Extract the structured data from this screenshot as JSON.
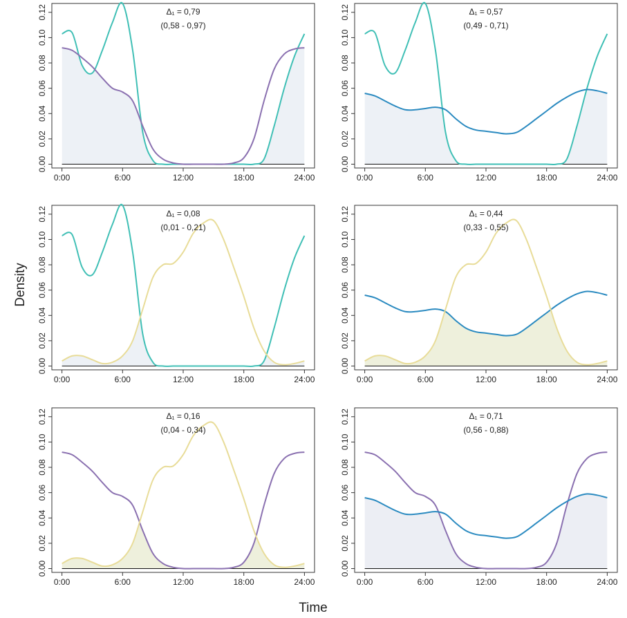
{
  "ylabel": "Density",
  "xlabel": "Time",
  "chart_data": [
    {
      "type": "line",
      "annotation": "Δ₁ = 0,79",
      "interval": "(0,58 - 0,97)",
      "shade_color": "#edf1f6",
      "x": [
        0,
        1,
        2,
        3,
        4,
        5,
        6,
        7,
        8,
        9,
        10,
        11,
        12,
        13,
        14,
        15,
        16,
        17,
        18,
        19,
        20,
        21,
        22,
        23,
        24
      ],
      "xlim": [
        -1,
        25
      ],
      "ylim": [
        -0.003,
        0.127
      ],
      "xticks": [
        {
          "value": 0,
          "label": "0:00"
        },
        {
          "value": 6,
          "label": "6:00"
        },
        {
          "value": 12,
          "label": "12:00"
        },
        {
          "value": 18,
          "label": "18:00"
        },
        {
          "value": 24,
          "label": "24:00"
        }
      ],
      "yticks": [
        {
          "value": 0,
          "label": "0.00"
        },
        0.02,
        0.04,
        0.06,
        0.08,
        {
          "value": 0.1,
          "label": "0.10"
        },
        0.12
      ],
      "series": [
        {
          "color": "#3fbfb5",
          "values": [
            0.103,
            0.104,
            0.078,
            0.072,
            0.09,
            0.112,
            0.127,
            0.09,
            0.025,
            0.003,
            0,
            0,
            0,
            0,
            0,
            0,
            0,
            0,
            0,
            0,
            0.004,
            0.03,
            0.06,
            0.085,
            0.103
          ]
        },
        {
          "color": "#8a70b0",
          "values": [
            0.092,
            0.09,
            0.084,
            0.077,
            0.068,
            0.06,
            0.057,
            0.05,
            0.03,
            0.012,
            0.004,
            0.001,
            0,
            0,
            0,
            0,
            0,
            0.001,
            0.005,
            0.02,
            0.05,
            0.075,
            0.087,
            0.091,
            0.092
          ]
        }
      ]
    },
    {
      "type": "line",
      "annotation": "Δ₁ = 0,57",
      "interval": "(0,49 - 0,71)",
      "shade_color": "#edf1f6",
      "x": [
        0,
        1,
        2,
        3,
        4,
        5,
        6,
        7,
        8,
        9,
        10,
        11,
        12,
        13,
        14,
        15,
        16,
        17,
        18,
        19,
        20,
        21,
        22,
        23,
        24
      ],
      "xlim": [
        -1,
        25
      ],
      "ylim": [
        -0.003,
        0.127
      ],
      "xticks": [
        {
          "value": 0,
          "label": "0:00"
        },
        {
          "value": 6,
          "label": "6:00"
        },
        {
          "value": 12,
          "label": "12:00"
        },
        {
          "value": 18,
          "label": "18:00"
        },
        {
          "value": 24,
          "label": "24:00"
        }
      ],
      "yticks": [
        {
          "value": 0,
          "label": "0.00"
        },
        0.02,
        0.04,
        0.06,
        0.08,
        {
          "value": 0.1,
          "label": "0.10"
        },
        0.12
      ],
      "series": [
        {
          "color": "#3fbfb5",
          "values": [
            0.103,
            0.104,
            0.078,
            0.072,
            0.09,
            0.112,
            0.127,
            0.09,
            0.025,
            0.003,
            0,
            0,
            0,
            0,
            0,
            0,
            0,
            0,
            0,
            0,
            0.004,
            0.03,
            0.06,
            0.085,
            0.103
          ]
        },
        {
          "color": "#2a8ac0",
          "values": [
            0.056,
            0.054,
            0.05,
            0.046,
            0.043,
            0.043,
            0.044,
            0.045,
            0.043,
            0.036,
            0.03,
            0.027,
            0.026,
            0.025,
            0.024,
            0.025,
            0.03,
            0.036,
            0.042,
            0.048,
            0.053,
            0.057,
            0.059,
            0.058,
            0.056
          ]
        }
      ]
    },
    {
      "type": "line",
      "annotation": "Δ₁ = 0,08",
      "interval": "(0,01 - 0,21)",
      "shade_color": "#edf1f6",
      "x": [
        0,
        1,
        2,
        3,
        4,
        5,
        6,
        7,
        8,
        9,
        10,
        11,
        12,
        13,
        14,
        15,
        16,
        17,
        18,
        19,
        20,
        21,
        22,
        23,
        24
      ],
      "xlim": [
        -1,
        25
      ],
      "ylim": [
        -0.003,
        0.127
      ],
      "xticks": [
        {
          "value": 0,
          "label": "0:00"
        },
        {
          "value": 6,
          "label": "6:00"
        },
        {
          "value": 12,
          "label": "12:00"
        },
        {
          "value": 18,
          "label": "18:00"
        },
        {
          "value": 24,
          "label": "24:00"
        }
      ],
      "yticks": [
        {
          "value": 0,
          "label": "0.00"
        },
        0.02,
        0.04,
        0.06,
        0.08,
        {
          "value": 0.1,
          "label": "0.10"
        },
        0.12
      ],
      "series": [
        {
          "color": "#3fbfb5",
          "values": [
            0.103,
            0.104,
            0.078,
            0.072,
            0.09,
            0.112,
            0.127,
            0.09,
            0.025,
            0.003,
            0,
            0,
            0,
            0,
            0,
            0,
            0,
            0,
            0,
            0,
            0.004,
            0.03,
            0.06,
            0.085,
            0.103
          ]
        },
        {
          "color": "#e8dc98",
          "values": [
            0.004,
            0.008,
            0.008,
            0.005,
            0.002,
            0.003,
            0.008,
            0.02,
            0.045,
            0.07,
            0.08,
            0.081,
            0.09,
            0.105,
            0.113,
            0.115,
            0.1,
            0.078,
            0.055,
            0.03,
            0.012,
            0.003,
            0.001,
            0.002,
            0.004
          ]
        }
      ]
    },
    {
      "type": "line",
      "annotation": "Δ₁ = 0,44",
      "interval": "(0,33 - 0,55)",
      "shade_color": "#eef0dc",
      "x": [
        0,
        1,
        2,
        3,
        4,
        5,
        6,
        7,
        8,
        9,
        10,
        11,
        12,
        13,
        14,
        15,
        16,
        17,
        18,
        19,
        20,
        21,
        22,
        23,
        24
      ],
      "xlim": [
        -1,
        25
      ],
      "ylim": [
        -0.003,
        0.127
      ],
      "xticks": [
        {
          "value": 0,
          "label": "0:00"
        },
        {
          "value": 6,
          "label": "6:00"
        },
        {
          "value": 12,
          "label": "12:00"
        },
        {
          "value": 18,
          "label": "18:00"
        },
        {
          "value": 24,
          "label": "24:00"
        }
      ],
      "yticks": [
        {
          "value": 0,
          "label": "0.00"
        },
        0.02,
        0.04,
        0.06,
        0.08,
        {
          "value": 0.1,
          "label": "0.10"
        },
        0.12
      ],
      "series": [
        {
          "color": "#2a8ac0",
          "values": [
            0.056,
            0.054,
            0.05,
            0.046,
            0.043,
            0.043,
            0.044,
            0.045,
            0.043,
            0.036,
            0.03,
            0.027,
            0.026,
            0.025,
            0.024,
            0.025,
            0.03,
            0.036,
            0.042,
            0.048,
            0.053,
            0.057,
            0.059,
            0.058,
            0.056
          ]
        },
        {
          "color": "#e8dc98",
          "values": [
            0.004,
            0.008,
            0.008,
            0.005,
            0.002,
            0.003,
            0.008,
            0.02,
            0.045,
            0.07,
            0.08,
            0.081,
            0.09,
            0.105,
            0.113,
            0.115,
            0.1,
            0.078,
            0.055,
            0.03,
            0.012,
            0.003,
            0.001,
            0.002,
            0.004
          ]
        }
      ]
    },
    {
      "type": "line",
      "annotation": "Δ₁ = 0,16",
      "interval": "(0,04 - 0,34)",
      "shade_color": "#eef0dc",
      "x": [
        0,
        1,
        2,
        3,
        4,
        5,
        6,
        7,
        8,
        9,
        10,
        11,
        12,
        13,
        14,
        15,
        16,
        17,
        18,
        19,
        20,
        21,
        22,
        23,
        24
      ],
      "xlim": [
        -1,
        25
      ],
      "ylim": [
        -0.003,
        0.127
      ],
      "xticks": [
        {
          "value": 0,
          "label": "0:00"
        },
        {
          "value": 6,
          "label": "6:00"
        },
        {
          "value": 12,
          "label": "12:00"
        },
        {
          "value": 18,
          "label": "18:00"
        },
        {
          "value": 24,
          "label": "24:00"
        }
      ],
      "yticks": [
        {
          "value": 0,
          "label": "0.00"
        },
        0.02,
        0.04,
        0.06,
        0.08,
        {
          "value": 0.1,
          "label": "0.10"
        },
        0.12
      ],
      "series": [
        {
          "color": "#8a70b0",
          "values": [
            0.092,
            0.09,
            0.084,
            0.077,
            0.068,
            0.06,
            0.057,
            0.05,
            0.03,
            0.012,
            0.004,
            0.001,
            0,
            0,
            0,
            0,
            0,
            0.001,
            0.005,
            0.02,
            0.05,
            0.075,
            0.087,
            0.091,
            0.092
          ]
        },
        {
          "color": "#e8dc98",
          "values": [
            0.004,
            0.008,
            0.008,
            0.005,
            0.002,
            0.003,
            0.008,
            0.02,
            0.045,
            0.07,
            0.08,
            0.081,
            0.09,
            0.105,
            0.113,
            0.115,
            0.1,
            0.078,
            0.055,
            0.03,
            0.012,
            0.003,
            0.001,
            0.002,
            0.004
          ]
        }
      ]
    },
    {
      "type": "line",
      "annotation": "Δ₁ = 0,71",
      "interval": "(0,56 - 0,88)",
      "shade_color": "#eceef4",
      "x": [
        0,
        1,
        2,
        3,
        4,
        5,
        6,
        7,
        8,
        9,
        10,
        11,
        12,
        13,
        14,
        15,
        16,
        17,
        18,
        19,
        20,
        21,
        22,
        23,
        24
      ],
      "xlim": [
        -1,
        25
      ],
      "ylim": [
        -0.003,
        0.127
      ],
      "xticks": [
        {
          "value": 0,
          "label": "0:00"
        },
        {
          "value": 6,
          "label": "6:00"
        },
        {
          "value": 12,
          "label": "12:00"
        },
        {
          "value": 18,
          "label": "18:00"
        },
        {
          "value": 24,
          "label": "24:00"
        }
      ],
      "yticks": [
        {
          "value": 0,
          "label": "0.00"
        },
        0.02,
        0.04,
        0.06,
        0.08,
        {
          "value": 0.1,
          "label": "0.10"
        },
        0.12
      ],
      "series": [
        {
          "color": "#8a70b0",
          "values": [
            0.092,
            0.09,
            0.084,
            0.077,
            0.068,
            0.06,
            0.057,
            0.05,
            0.03,
            0.012,
            0.004,
            0.001,
            0,
            0,
            0,
            0,
            0,
            0.001,
            0.005,
            0.02,
            0.05,
            0.075,
            0.087,
            0.091,
            0.092
          ]
        },
        {
          "color": "#2a8ac0",
          "values": [
            0.056,
            0.054,
            0.05,
            0.046,
            0.043,
            0.043,
            0.044,
            0.045,
            0.043,
            0.036,
            0.03,
            0.027,
            0.026,
            0.025,
            0.024,
            0.025,
            0.03,
            0.036,
            0.042,
            0.048,
            0.053,
            0.057,
            0.059,
            0.058,
            0.056
          ]
        }
      ]
    }
  ]
}
